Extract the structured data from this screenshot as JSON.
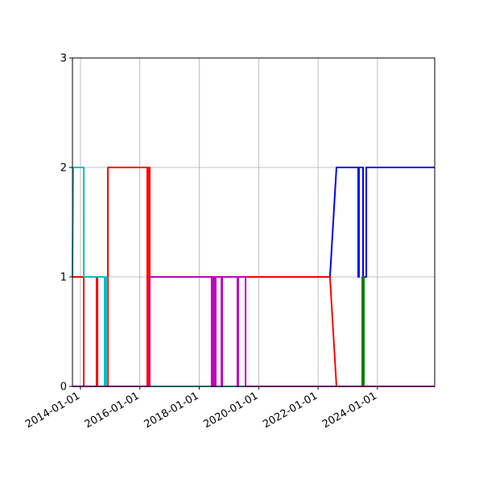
{
  "chart_data": {
    "type": "line",
    "grid": true,
    "xlim": [
      "2013-09-24",
      "2025-12-05"
    ],
    "xticks": [
      "2014-01-01",
      "2016-01-01",
      "2018-01-01",
      "2020-01-01",
      "2022-01-01",
      "2024-01-01"
    ],
    "ylim": [
      0,
      3
    ],
    "yticks": [
      0,
      1,
      2,
      3
    ],
    "series": [
      {
        "color": "#0000ff",
        "x": [
          "2013-09-24",
          "2016-05-01",
          "2016-05-01",
          "2022-05-27",
          "2022-08-15",
          "2023-05-09",
          "2023-05-09",
          "2023-05-19",
          "2023-05-19",
          "2023-07-08",
          "2023-07-08",
          "2023-08-17",
          "2023-08-17",
          "2025-12-05"
        ],
        "values": [
          0,
          0,
          1,
          1,
          2,
          2,
          1,
          1,
          2,
          2,
          1,
          1,
          2,
          2
        ]
      },
      {
        "color": "#008000",
        "x": [
          "2013-09-24",
          "2023-06-28",
          "2023-06-28",
          "2023-07-18",
          "2023-07-18",
          "2025-12-05"
        ],
        "values": [
          0,
          0,
          1,
          1,
          0,
          0
        ]
      },
      {
        "color": "#ff0000",
        "x": [
          "2013-09-24",
          "2014-02-10",
          "2014-02-10",
          "2014-07-18",
          "2014-07-18",
          "2014-07-28",
          "2014-07-28",
          "2014-12-04",
          "2014-12-04",
          "2016-04-01",
          "2016-04-01",
          "2016-04-21",
          "2016-04-21",
          "2016-05-01",
          "2016-05-01",
          "2022-05-27",
          "2022-08-15",
          "2025-12-05"
        ],
        "values": [
          1,
          1,
          0,
          0,
          1,
          1,
          0,
          0,
          2,
          2,
          0,
          0,
          2,
          2,
          1,
          1,
          0,
          0
        ]
      },
      {
        "color": "#00bfbf",
        "x": [
          "2013-09-24",
          "2013-10-04",
          "2014-02-10",
          "2014-02-10",
          "2014-10-25",
          "2014-10-25",
          "2014-11-14",
          "2014-11-14",
          "2014-11-24",
          "2014-11-24",
          "2025-12-05"
        ],
        "values": [
          1,
          2,
          2,
          1,
          1,
          0,
          0,
          1,
          1,
          0,
          0
        ]
      },
      {
        "color": "#bf00bf",
        "x": [
          "2013-09-24",
          "2016-05-01",
          "2016-05-01",
          "2018-06-02",
          "2018-06-02",
          "2018-06-22",
          "2018-06-22",
          "2018-07-12",
          "2018-07-12",
          "2018-07-22",
          "2018-07-22",
          "2018-09-30",
          "2018-09-30",
          "2018-10-10",
          "2018-10-10",
          "2019-04-15",
          "2019-04-15",
          "2019-04-25",
          "2019-04-25",
          "2019-07-24",
          "2019-07-24",
          "2025-12-05"
        ],
        "values": [
          0,
          0,
          1,
          1,
          0,
          0,
          1,
          1,
          0,
          0,
          1,
          1,
          0,
          0,
          1,
          1,
          0,
          0,
          1,
          1,
          0,
          0
        ]
      }
    ]
  }
}
